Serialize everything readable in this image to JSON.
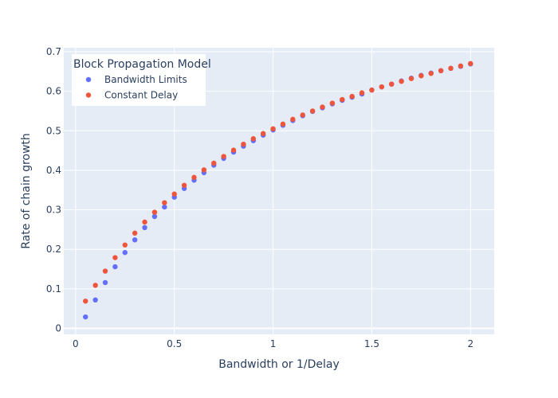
{
  "chart_data": {
    "type": "scatter",
    "xlabel": "Bandwidth or 1/Delay",
    "ylabel": "Rate of chain growth",
    "xlim": [
      -0.06,
      2.12
    ],
    "ylim": [
      -0.015,
      0.71
    ],
    "x_ticks": [
      0,
      0.5,
      1,
      1.5,
      2
    ],
    "x_tick_labels": [
      "0",
      "0.5",
      "1",
      "1.5",
      "2"
    ],
    "y_ticks": [
      0,
      0.1,
      0.2,
      0.3,
      0.4,
      0.5,
      0.6,
      0.7
    ],
    "y_tick_labels": [
      "0",
      "0.1",
      "0.2",
      "0.3",
      "0.4",
      "0.5",
      "0.6",
      "0.7"
    ],
    "grid": true,
    "legend": {
      "title": "Block Propagation Model",
      "placement": "top-left"
    },
    "x": [
      0.05,
      0.1,
      0.15,
      0.2,
      0.25,
      0.3,
      0.35,
      0.4,
      0.45,
      0.5,
      0.55,
      0.6,
      0.65,
      0.7,
      0.75,
      0.8,
      0.85,
      0.9,
      0.95,
      1.0,
      1.05,
      1.1,
      1.15,
      1.2,
      1.25,
      1.3,
      1.35,
      1.4,
      1.45,
      1.5,
      1.55,
      1.6,
      1.65,
      1.7,
      1.75,
      1.8,
      1.85,
      1.9,
      1.95,
      2.0
    ],
    "series": [
      {
        "name": "Bandwidth Limits",
        "color": "#636efa",
        "values": [
          0.029,
          0.072,
          0.116,
          0.156,
          0.192,
          0.224,
          0.255,
          0.283,
          0.307,
          0.332,
          0.354,
          0.375,
          0.394,
          0.413,
          0.43,
          0.446,
          0.461,
          0.475,
          0.489,
          0.502,
          0.514,
          0.526,
          0.538,
          0.549,
          0.558,
          0.568,
          0.577,
          0.585,
          0.593,
          0.603,
          0.611,
          0.618,
          0.626,
          0.633,
          0.64,
          0.646,
          0.652,
          0.658,
          0.663,
          0.669
        ]
      },
      {
        "name": "Constant Delay",
        "color": "#ef553b",
        "values": [
          0.069,
          0.109,
          0.145,
          0.179,
          0.211,
          0.241,
          0.269,
          0.294,
          0.318,
          0.34,
          0.362,
          0.382,
          0.401,
          0.418,
          0.435,
          0.451,
          0.466,
          0.48,
          0.493,
          0.505,
          0.517,
          0.529,
          0.54,
          0.55,
          0.56,
          0.57,
          0.579,
          0.587,
          0.596,
          0.603,
          0.611,
          0.618,
          0.625,
          0.632,
          0.639,
          0.645,
          0.652,
          0.658,
          0.664,
          0.67
        ]
      }
    ]
  }
}
